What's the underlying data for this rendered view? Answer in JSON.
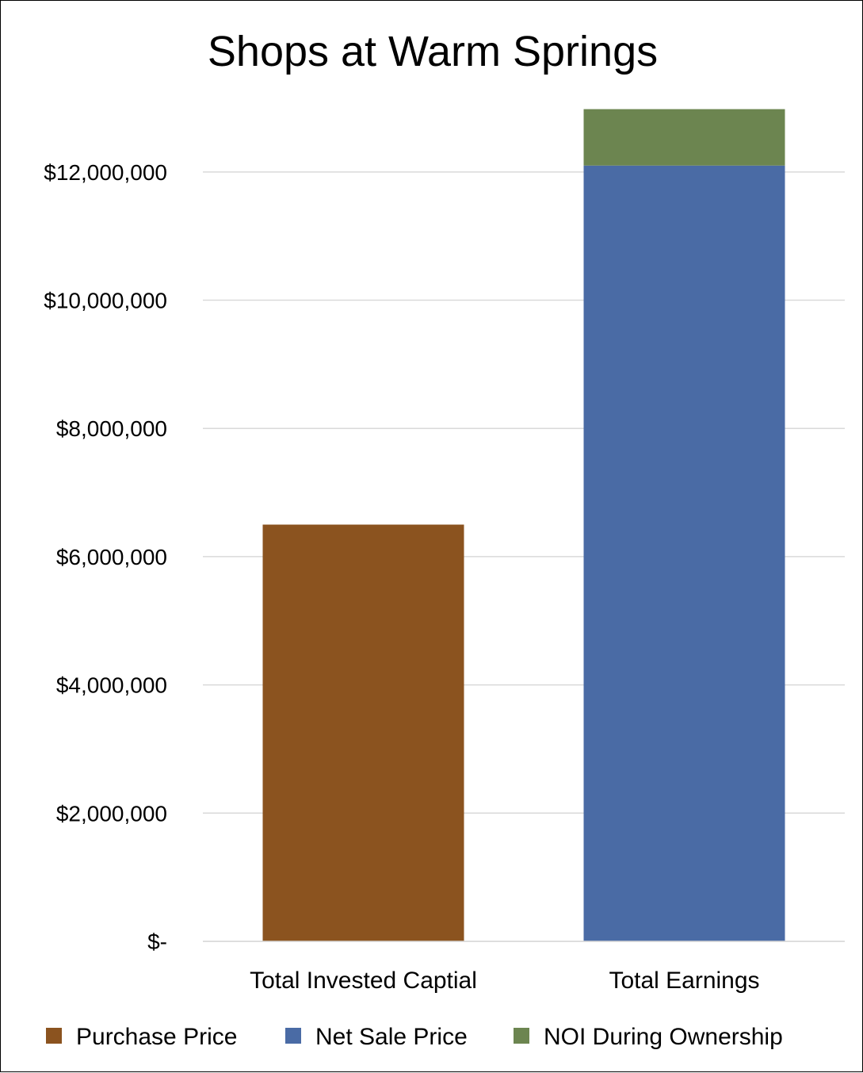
{
  "chart_data": {
    "type": "bar",
    "stacked": true,
    "title": "Shops at Warm Springs",
    "categories": [
      "Total Invested Captial",
      "Total Earnings"
    ],
    "series": [
      {
        "name": "Purchase Price",
        "color": "#8B531F",
        "values": [
          6500000,
          0
        ]
      },
      {
        "name": "Net Sale Price",
        "color": "#4A6BA5",
        "values": [
          0,
          12100000
        ]
      },
      {
        "name": "NOI During Ownership",
        "color": "#6C8550",
        "values": [
          0,
          880000
        ]
      }
    ],
    "ylim": [
      0,
      13000000
    ],
    "yticks": [
      0,
      2000000,
      4000000,
      6000000,
      8000000,
      10000000,
      12000000
    ],
    "ytick_labels": [
      "$-",
      "$2,000,000",
      "$4,000,000",
      "$6,000,000",
      "$8,000,000",
      "$10,000,000",
      "$12,000,000"
    ],
    "grid": true,
    "legend_position": "bottom"
  }
}
